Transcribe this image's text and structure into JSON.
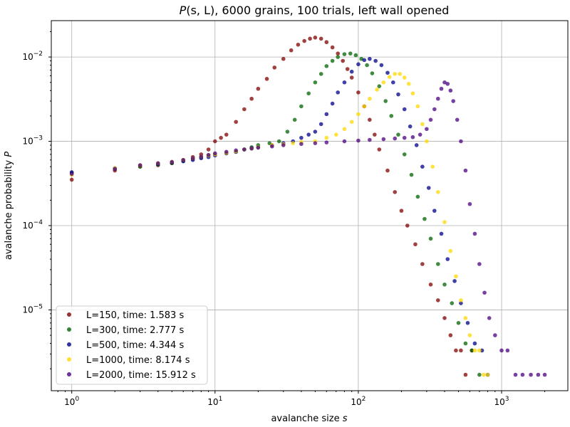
{
  "chart_data": {
    "type": "scatter",
    "title": "P(s, L), 6000 grains, 100 trials, left wall opened",
    "title_parts": {
      "pre": "P",
      "args": "(s, L)",
      "post": ", 6000 grains, 100 trials, left wall opened"
    },
    "xlabel": "avalanche size",
    "xlabel_var": "s",
    "ylabel": "avalanche probability",
    "ylabel_var": "P",
    "xscale": "log",
    "yscale": "log",
    "xlim": [
      0.72,
      2900
    ],
    "ylim": [
      1.1e-06,
      0.027
    ],
    "grid": true,
    "legend_position": "lower-left",
    "x_ticks": [
      {
        "value": 1,
        "base": "10",
        "exp": "0"
      },
      {
        "value": 10,
        "base": "10",
        "exp": "1"
      },
      {
        "value": 100,
        "base": "10",
        "exp": "2"
      },
      {
        "value": 1000,
        "base": "10",
        "exp": "3"
      }
    ],
    "y_ticks": [
      {
        "value": 1e-05,
        "base": "10",
        "exp": "−5"
      },
      {
        "value": 0.0001,
        "base": "10",
        "exp": "−4"
      },
      {
        "value": 0.001,
        "base": "10",
        "exp": "−3"
      },
      {
        "value": 0.01,
        "base": "10",
        "exp": "−2"
      }
    ],
    "series": [
      {
        "name": "L=150, time: 1.583 s",
        "color": "#800000",
        "x": [
          1,
          2,
          3,
          4,
          5,
          6,
          7,
          8,
          9,
          10,
          11,
          12,
          14,
          16,
          18,
          20,
          23,
          26,
          30,
          34,
          38,
          42,
          46,
          50,
          55,
          60,
          66,
          72,
          78,
          84,
          90,
          100,
          110,
          120,
          130,
          140,
          160,
          180,
          200,
          220,
          250,
          280,
          320,
          360,
          400,
          440,
          480,
          520,
          560,
          620
        ],
        "y": [
          0.00035,
          0.00045,
          0.0005,
          0.00052,
          0.00055,
          0.0006,
          0.00065,
          0.0007,
          0.0008,
          0.001,
          0.0011,
          0.0012,
          0.0017,
          0.0024,
          0.0032,
          0.0042,
          0.0055,
          0.0075,
          0.0095,
          0.012,
          0.014,
          0.0155,
          0.0165,
          0.017,
          0.0165,
          0.015,
          0.013,
          0.011,
          0.009,
          0.0072,
          0.0057,
          0.0038,
          0.0026,
          0.0018,
          0.0012,
          0.0008,
          0.00045,
          0.00025,
          0.00015,
          0.0001,
          6e-05,
          3.5e-05,
          2e-05,
          1.3e-05,
          8e-06,
          5e-06,
          3.3e-06,
          3.3e-06,
          1.7e-06,
          3.3e-06
        ]
      },
      {
        "name": "L=300, time: 2.777 s",
        "color": "#006400",
        "x": [
          1,
          2,
          3,
          4,
          5,
          6,
          7,
          8,
          9,
          10,
          12,
          14,
          16,
          18,
          20,
          24,
          28,
          32,
          36,
          40,
          45,
          50,
          55,
          60,
          66,
          72,
          80,
          88,
          96,
          105,
          115,
          125,
          140,
          155,
          170,
          190,
          210,
          235,
          260,
          290,
          320,
          360,
          400,
          450,
          500,
          560,
          620,
          700
        ],
        "y": [
          0.00042,
          0.00047,
          0.0005,
          0.00053,
          0.00055,
          0.00058,
          0.00062,
          0.00065,
          0.00068,
          0.0007,
          0.00072,
          0.00075,
          0.0008,
          0.00085,
          0.0009,
          0.00095,
          0.001,
          0.0013,
          0.0018,
          0.0026,
          0.0037,
          0.005,
          0.0063,
          0.0078,
          0.009,
          0.01,
          0.0108,
          0.011,
          0.0105,
          0.0095,
          0.008,
          0.0064,
          0.0045,
          0.003,
          0.002,
          0.0012,
          0.0007,
          0.0004,
          0.00022,
          0.00012,
          7e-05,
          3.5e-05,
          2e-05,
          1.2e-05,
          7e-06,
          4e-06,
          3.3e-06,
          1.7e-06
        ]
      },
      {
        "name": "L=500, time: 4.344 s",
        "color": "#00008b",
        "x": [
          1,
          2,
          3,
          4,
          5,
          6,
          7,
          8,
          9,
          10,
          12,
          14,
          16,
          18,
          20,
          25,
          30,
          35,
          40,
          45,
          50,
          55,
          60,
          66,
          72,
          80,
          90,
          100,
          110,
          120,
          132,
          145,
          160,
          175,
          190,
          210,
          230,
          255,
          280,
          310,
          340,
          380,
          420,
          470,
          520,
          580,
          650,
          730,
          800
        ],
        "y": [
          0.00043,
          0.00048,
          0.00052,
          0.00054,
          0.00056,
          0.00058,
          0.0006,
          0.00063,
          0.00065,
          0.00068,
          0.00072,
          0.00075,
          0.0008,
          0.00083,
          0.00085,
          0.0009,
          0.00095,
          0.001,
          0.0011,
          0.0012,
          0.0013,
          0.0016,
          0.0021,
          0.0028,
          0.0038,
          0.005,
          0.0067,
          0.0082,
          0.0092,
          0.0095,
          0.009,
          0.008,
          0.0065,
          0.005,
          0.0036,
          0.0024,
          0.0015,
          0.0009,
          0.0005,
          0.00028,
          0.00015,
          8e-05,
          4e-05,
          2.2e-05,
          1.2e-05,
          7e-06,
          4e-06,
          3.3e-06,
          1.7e-06
        ]
      },
      {
        "name": "L=1000, time: 8.174 s",
        "color": "#ffd700",
        "x": [
          1,
          2,
          3,
          4,
          5,
          6,
          7,
          8,
          9,
          10,
          12,
          14,
          16,
          18,
          20,
          25,
          30,
          35,
          40,
          50,
          60,
          70,
          80,
          90,
          100,
          110,
          120,
          135,
          150,
          165,
          180,
          195,
          210,
          225,
          240,
          260,
          280,
          300,
          330,
          360,
          400,
          440,
          480,
          520,
          560,
          600,
          650,
          700,
          750,
          800
        ],
        "y": [
          0.0004,
          0.00048,
          0.00052,
          0.00055,
          0.00057,
          0.0006,
          0.00063,
          0.00066,
          0.00068,
          0.0007,
          0.00073,
          0.00076,
          0.0008,
          0.00082,
          0.00085,
          0.0009,
          0.00092,
          0.00095,
          0.00098,
          0.001,
          0.0011,
          0.0012,
          0.0014,
          0.0017,
          0.0021,
          0.0026,
          0.0032,
          0.0041,
          0.005,
          0.0058,
          0.0063,
          0.0063,
          0.0057,
          0.0048,
          0.0037,
          0.0026,
          0.0016,
          0.001,
          0.0005,
          0.00025,
          0.00011,
          5e-05,
          2.5e-05,
          1.3e-05,
          8e-06,
          5e-06,
          3.3e-06,
          3.3e-06,
          1.7e-06,
          1.7e-06
        ]
      },
      {
        "name": "L=2000, time: 15.912 s",
        "color": "#4b0082",
        "x": [
          1,
          2,
          3,
          4,
          5,
          6,
          7,
          8,
          9,
          10,
          12,
          14,
          16,
          18,
          20,
          25,
          30,
          40,
          50,
          60,
          80,
          100,
          120,
          150,
          180,
          210,
          240,
          270,
          300,
          320,
          340,
          360,
          380,
          400,
          420,
          440,
          460,
          490,
          520,
          560,
          600,
          650,
          700,
          760,
          820,
          900,
          1000,
          1100,
          1250,
          1400,
          1600,
          1800,
          2000
        ],
        "y": [
          0.00041,
          0.00047,
          0.00052,
          0.00055,
          0.00057,
          0.0006,
          0.00063,
          0.00066,
          0.00069,
          0.00072,
          0.00075,
          0.00078,
          0.0008,
          0.00082,
          0.00084,
          0.00087,
          0.0009,
          0.00093,
          0.00095,
          0.00097,
          0.001,
          0.00102,
          0.00104,
          0.00106,
          0.00108,
          0.0011,
          0.00112,
          0.0012,
          0.0014,
          0.0018,
          0.0024,
          0.0032,
          0.0042,
          0.005,
          0.0048,
          0.004,
          0.003,
          0.0018,
          0.001,
          0.00045,
          0.00018,
          8e-05,
          3.5e-05,
          1.6e-05,
          8e-06,
          5e-06,
          3.3e-06,
          3.3e-06,
          1.7e-06,
          1.7e-06,
          1.7e-06,
          1.7e-06,
          1.7e-06
        ]
      }
    ]
  }
}
